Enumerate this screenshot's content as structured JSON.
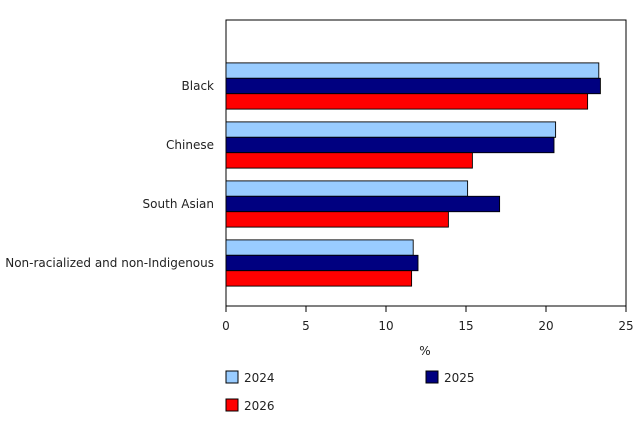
{
  "chart_data": {
    "type": "bar",
    "orientation": "horizontal",
    "title": "",
    "xlabel": "%",
    "ylabel": "",
    "categories": [
      "Black",
      "Chinese",
      "South Asian",
      "Non-racialized and non-Indigenous"
    ],
    "series": [
      {
        "name": "2024",
        "color": "#99ccff",
        "values": [
          23.3,
          20.6,
          15.1,
          11.7
        ]
      },
      {
        "name": "2025",
        "color": "#000080",
        "values": [
          23.4,
          20.5,
          17.1,
          12.0
        ]
      },
      {
        "name": "2026",
        "color": "#ff0000",
        "values": [
          22.6,
          15.4,
          13.9,
          11.6
        ]
      }
    ],
    "xlim": [
      0,
      25
    ],
    "xticks": [
      0,
      5,
      10,
      15,
      20,
      25
    ],
    "grid": false,
    "legend": "bottom"
  }
}
